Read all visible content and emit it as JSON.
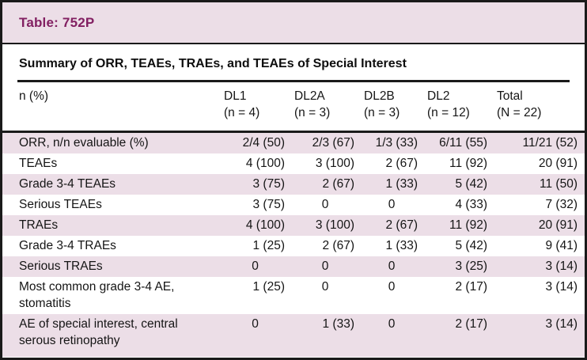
{
  "table_tag": "Table: 752P",
  "title": "Summary of ORR, TEAEs, TRAEs, and TEAEs of Special Interest",
  "colors": {
    "band_and_stripe_pink": "#ecdee7",
    "tag_text_plum": "#822062",
    "border_black": "#1a1a1a"
  },
  "table": {
    "header": {
      "label": "n (%)",
      "columns": [
        {
          "name": "DL1",
          "n": "(n = 4)"
        },
        {
          "name": "DL2A",
          "n": "(n = 3)"
        },
        {
          "name": "DL2B",
          "n": "(n = 3)"
        },
        {
          "name": "DL2",
          "n": "(n = 12)"
        },
        {
          "name": "Total",
          "n": "(N = 22)"
        }
      ]
    },
    "rows": [
      {
        "label": "ORR, n/n evaluable (%)",
        "values": [
          "2/4 (50)",
          "2/3 (67)",
          "1/3 (33)",
          "6/11 (55)",
          "11/21 (52)"
        ]
      },
      {
        "label": "TEAEs",
        "values": [
          "4 (100)",
          "3 (100)",
          "2 (67)",
          "11 (92)",
          "20 (91)"
        ]
      },
      {
        "label": "Grade 3-4 TEAEs",
        "values": [
          "3 (75)",
          "2 (67)",
          "1 (33)",
          "5 (42)",
          "11 (50)"
        ]
      },
      {
        "label": "Serious TEAEs",
        "values": [
          "3 (75)",
          "0",
          "0",
          "4 (33)",
          "7 (32)"
        ]
      },
      {
        "label": "TRAEs",
        "values": [
          "4 (100)",
          "3 (100)",
          "2 (67)",
          "11 (92)",
          "20 (91)"
        ]
      },
      {
        "label": "Grade 3-4 TRAEs",
        "values": [
          "1 (25)",
          "2 (67)",
          "1 (33)",
          "5 (42)",
          "9 (41)"
        ]
      },
      {
        "label": "Serious TRAEs",
        "values": [
          "0",
          "0",
          "0",
          "3 (25)",
          "3 (14)"
        ]
      },
      {
        "label": "Most common grade 3-4 AE, stomatitis",
        "values": [
          "1 (25)",
          "0",
          "0",
          "2 (17)",
          "3 (14)"
        ]
      },
      {
        "label": "AE of special interest, central serous retinopathy",
        "values": [
          "0",
          "1 (33)",
          "0",
          "2 (17)",
          "3 (14)"
        ]
      }
    ]
  }
}
